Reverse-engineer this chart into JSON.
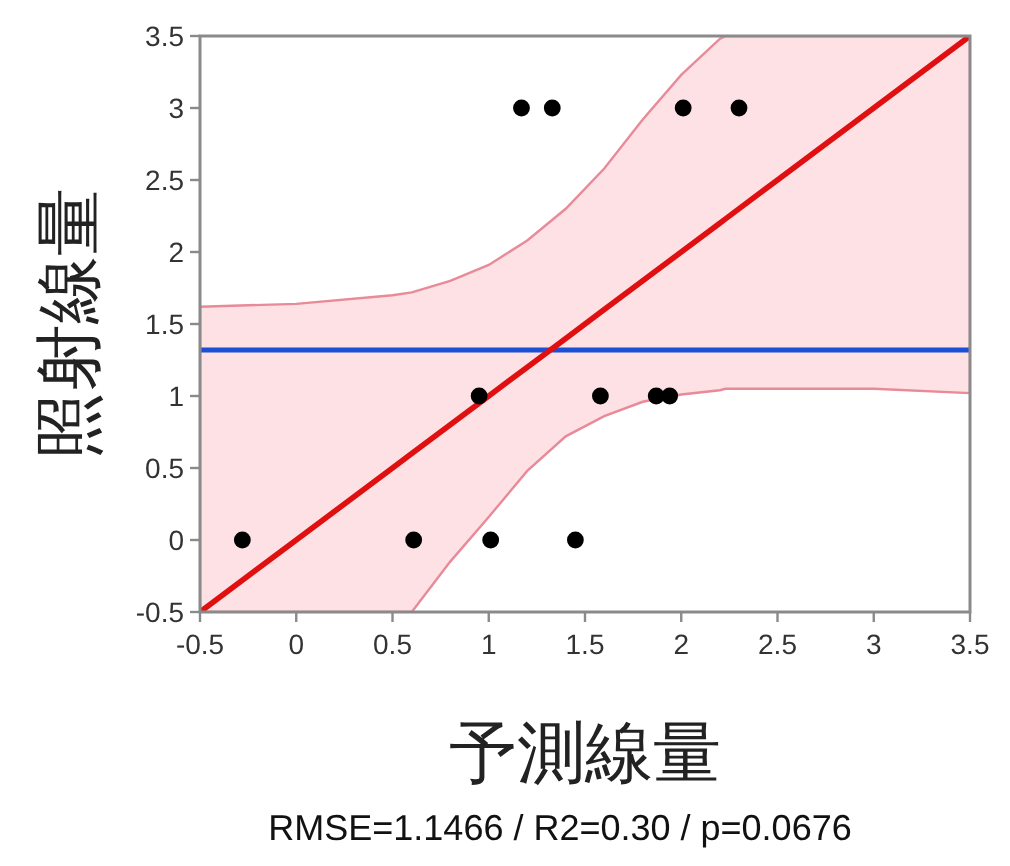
{
  "chart_data": {
    "type": "scatter",
    "xlabel": "予測線量",
    "ylabel": "照射線量",
    "annotations": [
      "RMSE=1.1466 / R2=0.30 / p=0.0676"
    ],
    "xlim": [
      -0.5,
      3.5
    ],
    "ylim": [
      -0.5,
      3.5
    ],
    "xticks": [
      -0.5,
      0,
      0.5,
      1,
      1.5,
      2,
      2.5,
      3,
      3.5
    ],
    "yticks": [
      -0.5,
      0,
      0.5,
      1,
      1.5,
      2,
      2.5,
      3,
      3.5
    ],
    "grid": false,
    "series": [
      {
        "marker": "circle",
        "color": "#000000",
        "x": [
          -0.28,
          0.61,
          1.01,
          1.45,
          0.95,
          1.17,
          1.33,
          2.01,
          2.3,
          1.58,
          1.87,
          1.94
        ],
        "values": [
          0,
          0,
          0,
          0,
          1,
          3,
          3,
          3,
          3,
          1,
          1,
          1
        ]
      },
      {
        "type": "line",
        "marker": "none",
        "color": "#e01010",
        "x": [
          -0.5,
          0,
          0.5,
          0.6,
          0.8,
          1,
          1.2,
          1.4,
          1.6,
          1.8,
          2,
          2.2,
          2.23,
          2.5,
          3,
          3.5
        ],
        "values": [
          -0.5,
          0,
          0.5,
          0.6,
          0.8,
          1,
          1.2,
          1.4,
          1.6,
          1.8,
          2,
          2.2,
          2.23,
          2.5,
          3,
          3.5
        ],
        "lower": [
          -0.5,
          -0.5,
          -0.5,
          -0.5,
          -0.15,
          0.16,
          0.48,
          0.72,
          0.86,
          0.96,
          1.01,
          1.04,
          1.05,
          1.05,
          1.05,
          1.02
        ],
        "upper": [
          1.62,
          1.64,
          1.7,
          1.72,
          1.8,
          1.91,
          2.08,
          2.3,
          2.58,
          2.92,
          3.23,
          3.48,
          3.5,
          3.5,
          3.5,
          3.5
        ]
      }
    ],
    "ref_lines": [
      {
        "axis": "y",
        "value": 1.32,
        "color": "#1a4fd6"
      }
    ]
  }
}
